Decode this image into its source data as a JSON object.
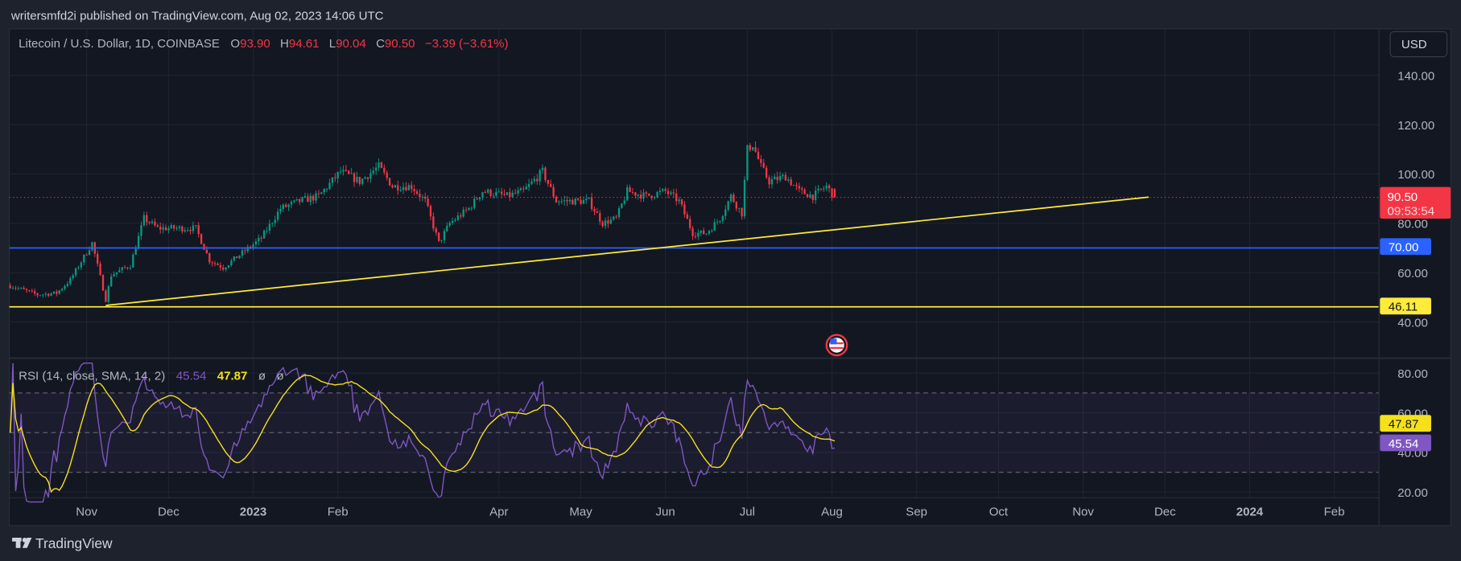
{
  "header": {
    "published": "writersmfd2i published on TradingView.com, Aug 02, 2023 14:06 UTC"
  },
  "legend": {
    "symbol": "Litecoin / U.S. Dollar, 1D, COINBASE",
    "o_label": "O",
    "o": "93.90",
    "h_label": "H",
    "h": "94.61",
    "l_label": "L",
    "l": "90.04",
    "c_label": "C",
    "c": "90.50",
    "change": "−3.39 (−3.61%)"
  },
  "currency_button": "USD",
  "price_axis": {
    "ticks": [
      {
        "value": 140,
        "label": "140.00"
      },
      {
        "value": 120,
        "label": "120.00"
      },
      {
        "value": 100,
        "label": "100.00"
      },
      {
        "value": 80,
        "label": "80.00"
      },
      {
        "value": 60,
        "label": "60.00"
      },
      {
        "value": 40,
        "label": "40.00"
      }
    ]
  },
  "price_tags": {
    "last": "90.50",
    "countdown": "09:53:54",
    "level_blue": "70.00",
    "level_yellow": "46.11"
  },
  "rsi": {
    "legend": "RSI (14, close, SMA, 14, 2)",
    "rsi_value": "45.54",
    "sma_value": "47.87",
    "extra1": "ø",
    "extra2": "ø",
    "ticks": [
      {
        "value": 80,
        "label": "80.00"
      },
      {
        "value": 60,
        "label": "60.00"
      },
      {
        "value": 40,
        "label": "40.00"
      },
      {
        "value": 20,
        "label": "20.00"
      }
    ],
    "bands": [
      70,
      50,
      30
    ]
  },
  "time_axis": {
    "labels": [
      {
        "label": "Nov",
        "date": "2022-11-01"
      },
      {
        "label": "Dec",
        "date": "2022-12-01"
      },
      {
        "label": "2023",
        "date": "2023-01-01",
        "bold": true
      },
      {
        "label": "Feb",
        "date": "2023-02-01"
      },
      {
        "label": "Apr",
        "date": "2023-04-01"
      },
      {
        "label": "May",
        "date": "2023-05-01"
      },
      {
        "label": "Jun",
        "date": "2023-06-01"
      },
      {
        "label": "Jul",
        "date": "2023-07-01"
      },
      {
        "label": "Aug",
        "date": "2023-08-01"
      },
      {
        "label": "Sep",
        "date": "2023-09-01"
      },
      {
        "label": "Oct",
        "date": "2023-10-01"
      },
      {
        "label": "Nov",
        "date": "2023-11-01"
      },
      {
        "label": "Dec",
        "date": "2023-12-01"
      },
      {
        "label": "2024",
        "date": "2024-01-01",
        "bold": true
      },
      {
        "label": "Feb",
        "date": "2024-02-01"
      }
    ]
  },
  "footer": {
    "brand": "TradingView"
  },
  "colors": {
    "up": "#089981",
    "down": "#f23645",
    "rsi": "#7e57c2",
    "rsi_sma": "#f5e11a",
    "trendline": "#ffeb3b",
    "level_blue": "#2962ff",
    "level_yellow": "#ffeb3b"
  },
  "chart_data": {
    "type": "candlestick",
    "title": "Litecoin / U.S. Dollar, 1D, COINBASE",
    "ylabel": "USD",
    "ylim": [
      30,
      150
    ],
    "approx_close_keypoints": {
      "dates": [
        "2022-10-04",
        "2022-10-14",
        "2022-10-21",
        "2022-10-26",
        "2022-11-03",
        "2022-11-08",
        "2022-11-10",
        "2022-11-17",
        "2022-11-22",
        "2022-11-27",
        "2022-12-11",
        "2022-12-16",
        "2022-12-21",
        "2022-12-28",
        "2023-01-04",
        "2023-01-11",
        "2023-01-18",
        "2023-01-25",
        "2023-02-02",
        "2023-02-09",
        "2023-02-16",
        "2023-02-21",
        "2023-02-28",
        "2023-03-05",
        "2023-03-10",
        "2023-03-14",
        "2023-03-21",
        "2023-03-26",
        "2023-04-04",
        "2023-04-10",
        "2023-04-17",
        "2023-04-22",
        "2023-04-28",
        "2023-05-04",
        "2023-05-09",
        "2023-05-14",
        "2023-05-18",
        "2023-05-25",
        "2023-06-01",
        "2023-06-06",
        "2023-06-11",
        "2023-06-16",
        "2023-06-21",
        "2023-06-25",
        "2023-06-29",
        "2023-07-01",
        "2023-07-03",
        "2023-07-06",
        "2023-07-09",
        "2023-07-15",
        "2023-07-20",
        "2023-07-25",
        "2023-07-30",
        "2023-08-02"
      ],
      "close": [
        54.7,
        51,
        51.7,
        57,
        72,
        49,
        59,
        63,
        82,
        78,
        78,
        65,
        62,
        68,
        74,
        86,
        89,
        91,
        101,
        97,
        103,
        95,
        95,
        89,
        72,
        80,
        86,
        93,
        91,
        93,
        101,
        89,
        89,
        89,
        80,
        82,
        93,
        91,
        93,
        89,
        76,
        76,
        82,
        91,
        84,
        110,
        112,
        103,
        97,
        99,
        93,
        91,
        95,
        90.5
      ]
    },
    "last_bar": {
      "date": "2023-08-02",
      "open": 93.9,
      "high": 94.61,
      "low": 90.04,
      "close": 90.5
    },
    "horizontal_levels": [
      70.0,
      46.11
    ],
    "trendline": {
      "from": {
        "date": "2022-11-08",
        "price": 46.7
      },
      "to": {
        "date": "2023-11-25",
        "price": 90.6
      }
    },
    "indicator": {
      "name": "RSI",
      "length": 14,
      "sma_length": 14,
      "last_rsi": 45.54,
      "last_sma": 47.87,
      "ylim": [
        15,
        85
      ]
    }
  }
}
